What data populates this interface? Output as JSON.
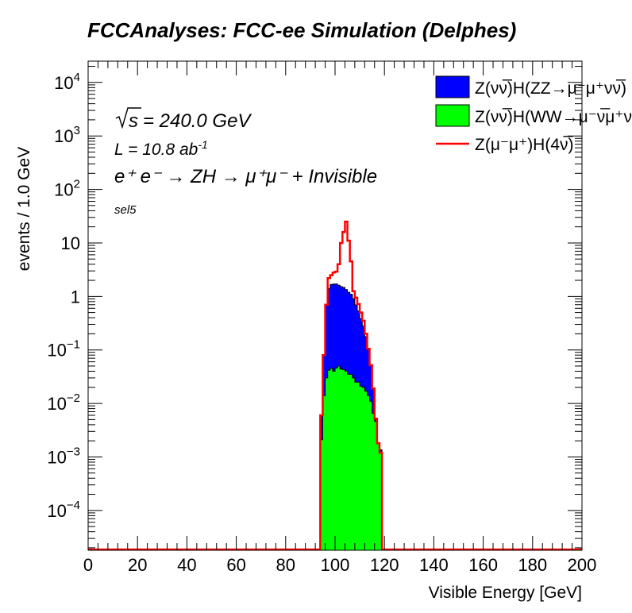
{
  "chart_data": {
    "type": "histogram",
    "title": "FCCAnalyses: FCC-ee Simulation (Delphes)",
    "xlabel": "Visible Energy [GeV]",
    "ylabel": "events / 1.0 GeV",
    "xlim": [
      0,
      200
    ],
    "ylim": [
      1.8e-05,
      25000
    ],
    "yscale": "log",
    "bin_width": 1.0,
    "x_ticks": [
      0,
      20,
      40,
      60,
      80,
      100,
      120,
      140,
      160,
      180,
      200
    ],
    "y_ticks": [
      {
        "value": 0.0001,
        "base": "10",
        "exp": "−4"
      },
      {
        "value": 0.001,
        "base": "10",
        "exp": "−3"
      },
      {
        "value": 0.01,
        "base": "10",
        "exp": "−2"
      },
      {
        "value": 0.1,
        "base": "10",
        "exp": "−1"
      },
      {
        "value": 1,
        "base": "1",
        "exp": ""
      },
      {
        "value": 10,
        "base": "10",
        "exp": ""
      },
      {
        "value": 100,
        "base": "10",
        "exp": "2"
      },
      {
        "value": 1000,
        "base": "10",
        "exp": "3"
      },
      {
        "value": 10000,
        "base": "10",
        "exp": "4"
      }
    ],
    "annotations": {
      "sqrt_s": "= 240.0 GeV",
      "lumi": "L = 10.8 ab",
      "lumi_exp": "-1",
      "process": "e⁺ e⁻ → ZH → μ⁺μ⁻ + Invisible",
      "selection": "sel5"
    },
    "legend_position": "top-right",
    "stacked_series": [
      {
        "name": "Z(νν̅)H(WW→μ⁻ν̅μ⁺ν)",
        "color": "#00ff00",
        "x_start": 94,
        "values": [
          0.0021,
          0.014,
          0.03,
          0.042,
          0.045,
          0.04,
          0.046,
          0.05,
          0.044,
          0.043,
          0.04,
          0.035,
          0.035,
          0.03,
          0.025,
          0.025,
          0.021,
          0.02,
          0.017,
          0.014,
          0.011,
          0.0065,
          0.0046,
          0.0018,
          0.0012
        ]
      },
      {
        "name": "Z(νν̅)H(ZZ→μ⁻μ⁺νν̅)",
        "color": "#0000ff",
        "x_start": 94,
        "values": [
          0.0039,
          0.066,
          0.67,
          1.36,
          1.63,
          1.66,
          1.66,
          1.57,
          1.48,
          1.43,
          1.3,
          1.16,
          1.06,
          0.88,
          0.67,
          0.51,
          0.36,
          0.26,
          0.16,
          0.086,
          0.04,
          0.012,
          0.0004,
          6e-05,
          0.00016
        ]
      }
    ],
    "line_series": {
      "name": "Z(μ⁻μ⁺)H(4ν̅)",
      "color": "#ff0000",
      "x_start": 94,
      "values": [
        0.006,
        0.08,
        0.7,
        2.2,
        2.5,
        2.8,
        2.9,
        4.0,
        10.0,
        16.0,
        25.0,
        11.0,
        4.5,
        1.25,
        0.95,
        0.72,
        0.5,
        0.35,
        0.2,
        0.105,
        0.052,
        0.019,
        0.0052,
        0.0018,
        0.0012
      ]
    },
    "legend_labels": [
      {
        "text": "Z(νν̅)H(ZZ→μ⁻μ⁺νν̅)",
        "color": "#0000ff",
        "kind": "fill"
      },
      {
        "text": "Z(νν̅)H(WW→μ⁻ν̅μ⁺ν)",
        "color": "#00ff00",
        "kind": "fill"
      },
      {
        "text": "Z(μ⁻μ⁺)H(4ν̅)",
        "color": "#ff0000",
        "kind": "line"
      }
    ]
  }
}
